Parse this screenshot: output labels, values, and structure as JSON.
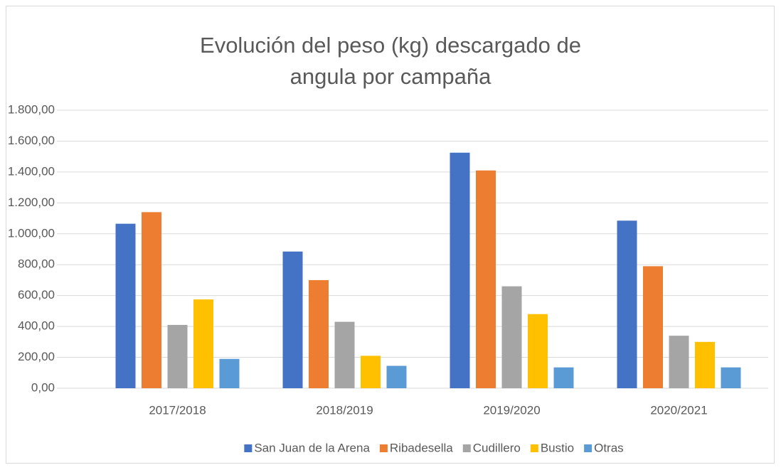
{
  "chart_data": {
    "type": "bar",
    "title": "Evolución del peso (kg) descargado de angula por campaña",
    "categories": [
      "2017/2018",
      "2018/2019",
      "2019/2020",
      "2020/2021"
    ],
    "series": [
      {
        "name": "San Juan de la Arena",
        "color": "#4472c4",
        "values": [
          1065,
          885,
          1525,
          1085
        ]
      },
      {
        "name": "Ribadesella",
        "color": "#ed7d31",
        "values": [
          1140,
          700,
          1410,
          790
        ]
      },
      {
        "name": "Cudillero",
        "color": "#a5a5a5",
        "values": [
          410,
          430,
          660,
          340
        ]
      },
      {
        "name": "Bustio",
        "color": "#ffc000",
        "values": [
          575,
          210,
          480,
          300
        ]
      },
      {
        "name": "Otras",
        "color": "#5b9bd5",
        "values": [
          190,
          145,
          135,
          135
        ]
      }
    ],
    "ylim": [
      0,
      1800
    ],
    "yticks": [
      {
        "value": 0,
        "label": "0,00"
      },
      {
        "value": 200,
        "label": "200,00"
      },
      {
        "value": 400,
        "label": "400,00"
      },
      {
        "value": 600,
        "label": "600,00"
      },
      {
        "value": 800,
        "label": "800,00"
      },
      {
        "value": 1000,
        "label": "1.000,00"
      },
      {
        "value": 1200,
        "label": "1.200,00"
      },
      {
        "value": 1400,
        "label": "1.400,00"
      },
      {
        "value": 1600,
        "label": "1.600,00"
      },
      {
        "value": 1800,
        "label": "1.800,00"
      }
    ],
    "grid": true,
    "legend": "bottom"
  }
}
